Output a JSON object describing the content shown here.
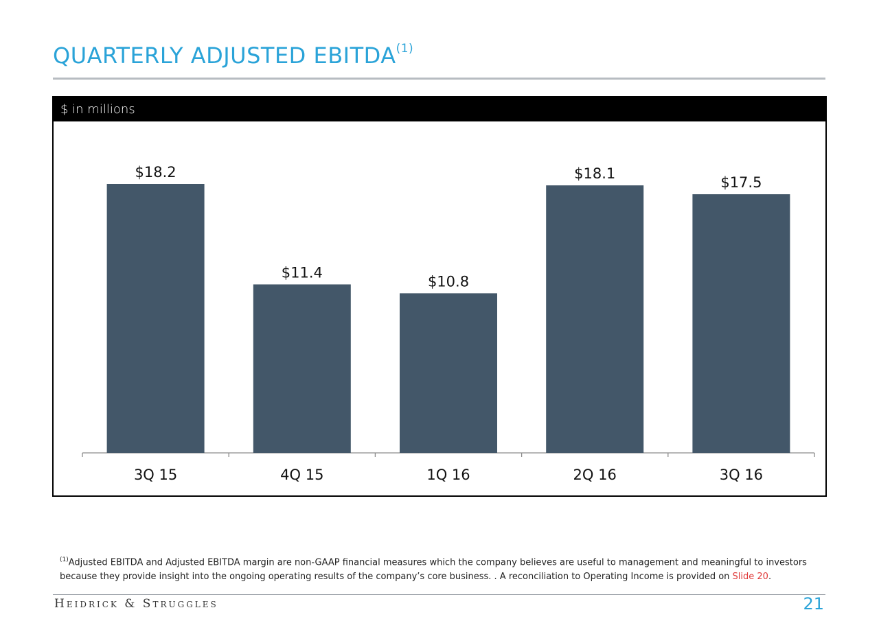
{
  "slide": {
    "title": "QUARTERLY ADJUSTED EBITDA",
    "title_footnote_marker": "(1)",
    "units_label": "$ in millions",
    "footnote": {
      "marker": "(1)",
      "text": "Adjusted EBITDA and Adjusted EBITDA margin are non-GAAP financial measures which the company believes are useful to management and meaningful to investors because they provide insight into the ongoing operating results of the company’s core business. .  A reconciliation to Operating Income is provided on",
      "link_text": "Slide 20",
      "end": "."
    },
    "brand": "Heidrick & Struggles",
    "page_number": "21",
    "colors": {
      "title": "#2aa3d8",
      "bar": "#435769",
      "link": "#e03a3a"
    }
  },
  "chart_data": {
    "type": "bar",
    "categories": [
      "3Q 15",
      "4Q 15",
      "1Q 16",
      "2Q 16",
      "3Q 16"
    ],
    "values": [
      18.2,
      11.4,
      10.8,
      18.1,
      17.5
    ],
    "data_labels": [
      "$18.2",
      "$11.4",
      "$10.8",
      "$18.1",
      "$17.5"
    ],
    "ylim": [
      0,
      18.2
    ],
    "grid": false,
    "legend": "none"
  }
}
